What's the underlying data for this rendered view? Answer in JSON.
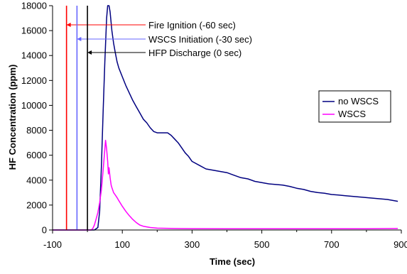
{
  "chart_data": {
    "type": "line",
    "title": "",
    "xlabel": "Time (sec)",
    "ylabel": "HF Concentration (ppm)",
    "xlim": [
      -100,
      900
    ],
    "ylim": [
      0,
      18000
    ],
    "x_ticks": [
      -100,
      100,
      300,
      500,
      700,
      900
    ],
    "y_ticks": [
      0,
      2000,
      4000,
      6000,
      8000,
      10000,
      12000,
      14000,
      16000,
      18000
    ],
    "legend_position": "right",
    "grid": false,
    "events": [
      {
        "label": "Fire Ignition (-60 sec)",
        "x": -60,
        "color": "#ff0000"
      },
      {
        "label": "WSCS Initiation (-30 sec)",
        "x": -30,
        "color": "#6666ff"
      },
      {
        "label": "HFP Discharge (0 sec)",
        "x": 0,
        "color": "#000000"
      }
    ],
    "series": [
      {
        "name": "no WSCS",
        "color": "#000080",
        "x": [
          -100,
          20,
          30,
          35,
          40,
          45,
          50,
          55,
          58,
          62,
          65,
          70,
          75,
          80,
          85,
          90,
          100,
          110,
          120,
          130,
          140,
          150,
          160,
          170,
          180,
          190,
          200,
          210,
          220,
          230,
          240,
          250,
          260,
          270,
          280,
          290,
          300,
          320,
          340,
          360,
          380,
          400,
          420,
          440,
          460,
          480,
          500,
          520,
          540,
          560,
          580,
          600,
          620,
          640,
          660,
          680,
          700,
          720,
          740,
          760,
          780,
          800,
          820,
          840,
          860,
          880,
          890
        ],
        "y": [
          0,
          0,
          200,
          1500,
          5000,
          9500,
          13500,
          17000,
          18500,
          18500,
          17500,
          16000,
          15000,
          14200,
          13500,
          13000,
          12300,
          11600,
          11000,
          10400,
          9900,
          9400,
          8900,
          8600,
          8200,
          7900,
          7800,
          7800,
          7800,
          7800,
          7600,
          7300,
          7000,
          6600,
          6200,
          5900,
          5500,
          5200,
          4900,
          4800,
          4700,
          4600,
          4400,
          4200,
          4100,
          3900,
          3800,
          3700,
          3650,
          3600,
          3500,
          3350,
          3250,
          3100,
          3000,
          2950,
          2850,
          2800,
          2750,
          2700,
          2650,
          2600,
          2550,
          2500,
          2450,
          2350,
          2300
        ]
      },
      {
        "name": "WSCS",
        "color": "#ff00ff",
        "x": [
          -100,
          10,
          15,
          20,
          25,
          30,
          35,
          40,
          45,
          50,
          52,
          55,
          58,
          60,
          62,
          65,
          68,
          70,
          75,
          80,
          85,
          90,
          100,
          110,
          120,
          130,
          140,
          150,
          160,
          180,
          200,
          250,
          300,
          400,
          500,
          600,
          700,
          800,
          890
        ],
        "y": [
          0,
          0,
          100,
          400,
          900,
          1400,
          2200,
          3200,
          4800,
          6500,
          7200,
          6500,
          5500,
          4500,
          5000,
          4200,
          3600,
          3400,
          3000,
          2800,
          2600,
          2350,
          1900,
          1500,
          1150,
          850,
          600,
          400,
          300,
          200,
          150,
          120,
          110,
          100,
          100,
          100,
          100,
          100,
          120
        ]
      }
    ]
  }
}
